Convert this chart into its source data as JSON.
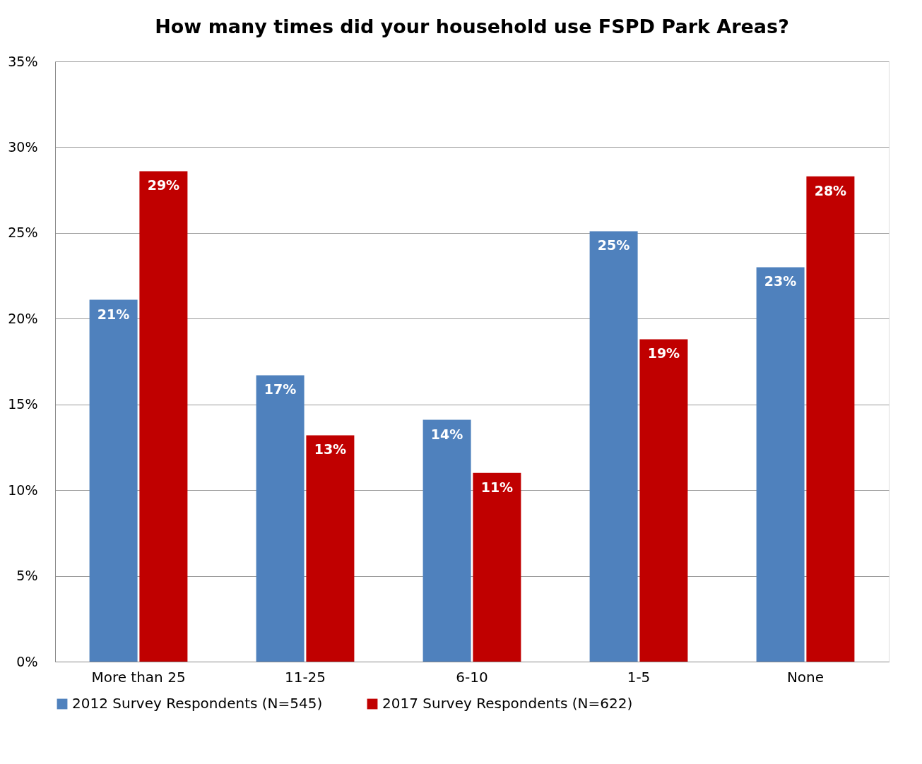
{
  "chart_data": {
    "type": "bar",
    "title": "How many times did your household use FSPD Park Areas?",
    "categories": [
      "More than 25",
      "11-25",
      "6-10",
      "1-5",
      "None"
    ],
    "series": [
      {
        "name": "2012 Survey Respondents (N=545)",
        "color": "#4f81bd",
        "values": [
          21.1,
          16.7,
          14.1,
          25.1,
          23.0
        ],
        "value_labels": [
          "21%",
          "17%",
          "14%",
          "25%",
          "23%"
        ]
      },
      {
        "name": "2017 Survey Respondents (N=622)",
        "color": "#c00000",
        "values": [
          28.6,
          13.2,
          11.0,
          18.8,
          28.3
        ],
        "value_labels": [
          "29%",
          "13%",
          "11%",
          "19%",
          "28%"
        ]
      }
    ],
    "ylim": [
      0,
      35
    ],
    "yticks": [
      {
        "value": 0,
        "label": "0%"
      },
      {
        "value": 5,
        "label": "5%"
      },
      {
        "value": 10,
        "label": "10%"
      },
      {
        "value": 15,
        "label": "15%"
      },
      {
        "value": 20,
        "label": "20%"
      },
      {
        "value": 25,
        "label": "25%"
      },
      {
        "value": 30,
        "label": "30%"
      },
      {
        "value": 35,
        "label": "35%"
      }
    ],
    "grid": "y",
    "legend": "bottom"
  }
}
